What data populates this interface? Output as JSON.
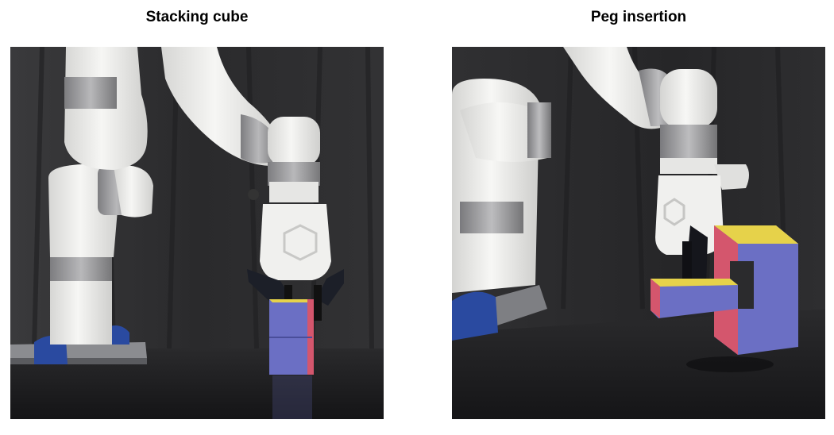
{
  "panels": [
    {
      "title": "Stacking cube",
      "image": "robot-arm-stacking-cubes-photo"
    },
    {
      "title": "Peg insertion",
      "image": "robot-arm-peg-insertion-photo"
    }
  ],
  "colors": {
    "curtain": "#2b2b2d",
    "table": "#1c1c1e",
    "robot_white": "#ececea",
    "robot_silver": "#9a9a9c",
    "cube_blue": "#6b6fc4",
    "cube_red": "#d4566d",
    "cube_yellow": "#e6d24a",
    "clamp_blue": "#2a4aa0"
  }
}
